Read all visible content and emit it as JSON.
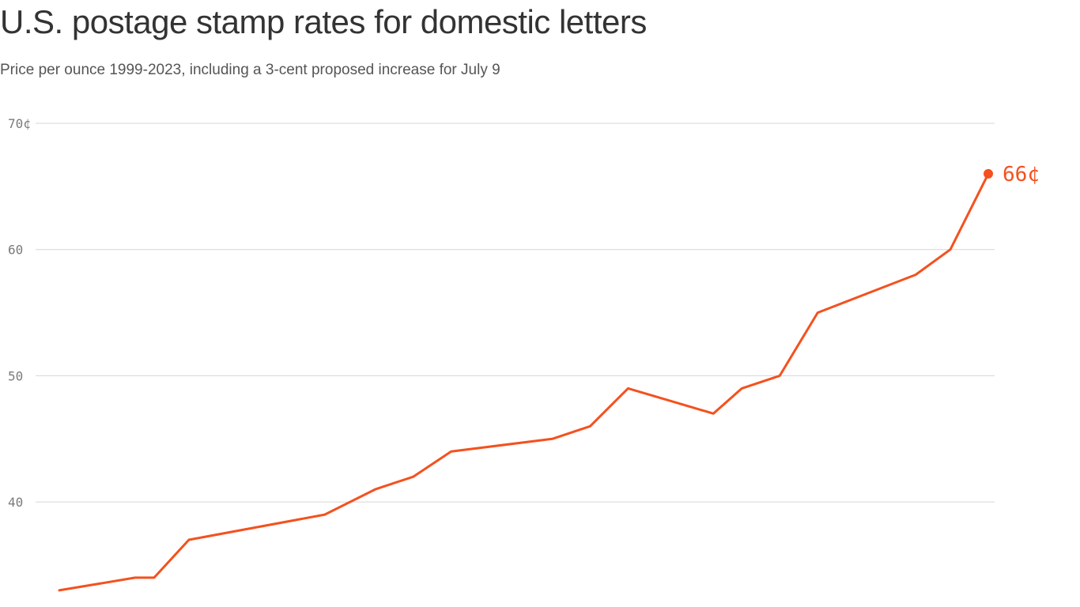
{
  "header": {
    "title": "U.S. postage stamp rates for domestic letters",
    "subtitle": "Price per ounce 1999-2023, including a 3-cent proposed increase for July 9"
  },
  "colors": {
    "line": "#f4511e",
    "grid": "#d6d6d6",
    "tick": "#7a7a7a"
  },
  "chart_data": {
    "type": "line",
    "title": "U.S. postage stamp rates for domestic letters",
    "subtitle": "Price per ounce 1999-2023, including a 3-cent proposed increase for July 9",
    "xlabel": "",
    "ylabel": "",
    "xlim": [
      "1999-01",
      "2023-07"
    ],
    "ylim": [
      33,
      70
    ],
    "yticks": [
      {
        "value": 70,
        "label": "70¢"
      },
      {
        "value": 60,
        "label": "60"
      },
      {
        "value": 50,
        "label": "50"
      },
      {
        "value": 40,
        "label": "40"
      }
    ],
    "grid": true,
    "x_axis_labels_shown": false,
    "series": [
      {
        "x": [
          "1999-01",
          "2001-01",
          "2001-07",
          "2002-06",
          "2006-01",
          "2007-05",
          "2008-05",
          "2009-05",
          "2012-01",
          "2013-01",
          "2014-01",
          "2016-04",
          "2017-01",
          "2018-01",
          "2019-01",
          "2021-08",
          "2022-07",
          "2023-01",
          "2023-07"
        ],
        "y": [
          33,
          34,
          34,
          37,
          39,
          41,
          42,
          44,
          45,
          46,
          49,
          47,
          49,
          50,
          55,
          58,
          60,
          63,
          66
        ]
      }
    ],
    "annotations": [
      {
        "x": "2023-07",
        "y": 66,
        "label": "66¢"
      }
    ]
  }
}
